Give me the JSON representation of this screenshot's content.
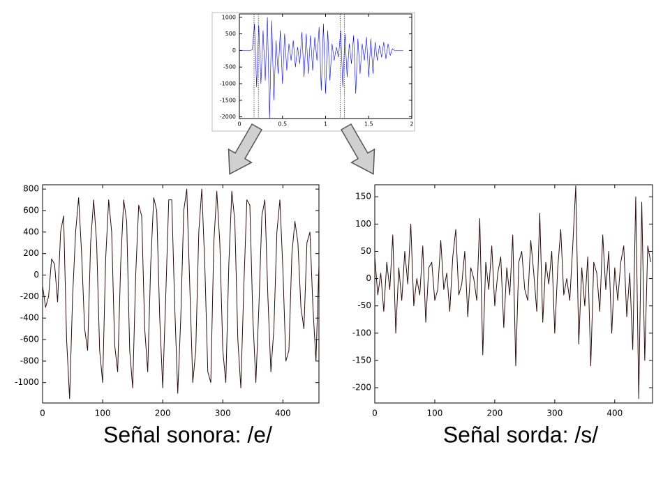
{
  "chart_data": [
    {
      "type": "line",
      "color": "#0000ff",
      "x": [
        0,
        0.025,
        0.05,
        0.075,
        0.1,
        0.125,
        0.15,
        0.175,
        0.2,
        0.225,
        0.25,
        0.275,
        0.3,
        0.325,
        0.35,
        0.375,
        0.4,
        0.425,
        0.45,
        0.475,
        0.5,
        0.525,
        0.55,
        0.575,
        0.6,
        0.625,
        0.65,
        0.675,
        0.7,
        0.725,
        0.75,
        0.775,
        0.8,
        0.825,
        0.85,
        0.875,
        0.9,
        0.925,
        0.95,
        0.975,
        1.0,
        1.025,
        1.05,
        1.075,
        1.1,
        1.125,
        1.15,
        1.175,
        1.2,
        1.225,
        1.25,
        1.275,
        1.3,
        1.325,
        1.35,
        1.375,
        1.4,
        1.425,
        1.45,
        1.475,
        1.5,
        1.525,
        1.55,
        1.575,
        1.6,
        1.625,
        1.65,
        1.675,
        1.7,
        1.725,
        1.75,
        1.775,
        1.8,
        1.825,
        1.85,
        1.875,
        1.9
      ],
      "values": [
        0,
        0,
        0,
        0,
        0,
        0,
        20,
        800,
        -1100,
        750,
        -1000,
        600,
        -900,
        1000,
        -2050,
        900,
        -1500,
        300,
        -700,
        600,
        -1000,
        500,
        -600,
        200,
        -300,
        300,
        -500,
        100,
        -400,
        550,
        -800,
        500,
        -700,
        450,
        -600,
        400,
        -300,
        700,
        -1200,
        800,
        -1300,
        600,
        -900,
        200,
        -300,
        100,
        -200,
        600,
        -1100,
        500,
        -800,
        200,
        -400,
        450,
        -1300,
        350,
        -700,
        200,
        -300,
        400,
        -800,
        350,
        -700,
        250,
        -300,
        150,
        -200,
        250,
        -250,
        200,
        -150,
        50,
        0,
        0,
        0,
        0,
        0
      ],
      "selections": [
        0.17,
        0.22,
        1.17,
        1.22
      ],
      "xlim": [
        0,
        2
      ],
      "ylim": [
        -2050,
        1100
      ],
      "xticks": [
        0,
        0.5,
        1,
        1.5,
        2
      ],
      "yticks": [
        1000,
        500,
        0,
        -500,
        -1000,
        -1500,
        -2000
      ]
    },
    {
      "type": "line",
      "color": "#2a0a0a",
      "title": "Señal sonora: /e/",
      "x": [
        0,
        5,
        10,
        15,
        20,
        25,
        30,
        35,
        40,
        45,
        50,
        55,
        60,
        65,
        70,
        75,
        80,
        85,
        90,
        95,
        100,
        105,
        110,
        115,
        120,
        125,
        130,
        135,
        140,
        145,
        150,
        155,
        160,
        165,
        170,
        175,
        180,
        185,
        190,
        195,
        200,
        205,
        210,
        215,
        220,
        225,
        230,
        235,
        240,
        245,
        250,
        255,
        260,
        265,
        270,
        275,
        280,
        285,
        290,
        295,
        300,
        305,
        310,
        315,
        320,
        325,
        330,
        335,
        340,
        345,
        350,
        355,
        360,
        365,
        370,
        375,
        380,
        385,
        390,
        395,
        400,
        405,
        410,
        415,
        420,
        425,
        430,
        435,
        440,
        445,
        450,
        455,
        460
      ],
      "values": [
        -100,
        -300,
        -200,
        150,
        100,
        -250,
        400,
        550,
        -600,
        -1150,
        -200,
        400,
        720,
        200,
        -500,
        -700,
        300,
        700,
        300,
        -700,
        -1000,
        150,
        700,
        400,
        -650,
        -900,
        100,
        700,
        500,
        -700,
        -1050,
        0,
        650,
        550,
        -500,
        -900,
        100,
        720,
        600,
        -400,
        -1050,
        -200,
        700,
        700,
        -300,
        -1100,
        -400,
        600,
        800,
        -100,
        -1000,
        -700,
        400,
        800,
        100,
        -900,
        -1000,
        300,
        780,
        300,
        -700,
        -1000,
        100,
        780,
        500,
        -600,
        -1050,
        -100,
        700,
        650,
        -400,
        -1000,
        -300,
        550,
        700,
        -200,
        -900,
        -500,
        400,
        700,
        50,
        -800,
        -700,
        200,
        500,
        300,
        -300,
        -500,
        300,
        400,
        -300,
        -800,
        100
      ],
      "xlim": [
        0,
        460
      ],
      "ylim": [
        -1190,
        840
      ],
      "xticks": [
        0,
        100,
        200,
        300,
        400
      ],
      "yticks": [
        800,
        600,
        400,
        200,
        0,
        -200,
        -400,
        -600,
        -800,
        -1000
      ]
    },
    {
      "type": "line",
      "color": "#2a0a0a",
      "title": "Señal sorda: /s/",
      "x": [
        0,
        5,
        10,
        15,
        20,
        25,
        30,
        35,
        40,
        45,
        50,
        55,
        60,
        65,
        70,
        75,
        80,
        85,
        90,
        95,
        100,
        105,
        110,
        115,
        120,
        125,
        130,
        135,
        140,
        145,
        150,
        155,
        160,
        165,
        170,
        175,
        180,
        185,
        190,
        195,
        200,
        205,
        210,
        215,
        220,
        225,
        230,
        235,
        240,
        245,
        250,
        255,
        260,
        265,
        270,
        275,
        280,
        285,
        290,
        295,
        300,
        305,
        310,
        315,
        320,
        325,
        330,
        335,
        340,
        345,
        350,
        355,
        360,
        365,
        370,
        375,
        380,
        385,
        390,
        395,
        400,
        405,
        410,
        415,
        420,
        425,
        430,
        435,
        440,
        445,
        450,
        455,
        460
      ],
      "values": [
        40,
        -30,
        10,
        -60,
        30,
        -20,
        80,
        -100,
        20,
        -40,
        50,
        -10,
        100,
        -50,
        0,
        -30,
        60,
        -80,
        20,
        30,
        -40,
        -20,
        70,
        -20,
        10,
        -60,
        40,
        90,
        -30,
        -10,
        50,
        -70,
        20,
        0,
        -40,
        110,
        -140,
        30,
        -20,
        60,
        -50,
        10,
        40,
        -90,
        20,
        -30,
        80,
        -160,
        30,
        50,
        -20,
        -40,
        70,
        10,
        -60,
        120,
        -80,
        30,
        -10,
        50,
        -100,
        20,
        90,
        -30,
        0,
        -40,
        60,
        170,
        -120,
        20,
        -50,
        40,
        -160,
        30,
        10,
        -60,
        80,
        -20,
        50,
        -100,
        20,
        -40,
        30,
        60,
        -70,
        10,
        -130,
        150,
        -220,
        140,
        -150,
        60,
        30
      ],
      "xlim": [
        0,
        463
      ],
      "ylim": [
        -228,
        172
      ],
      "xticks": [
        0,
        100,
        200,
        300,
        400
      ],
      "yticks": [
        150,
        100,
        50,
        0,
        -50,
        -100,
        -150,
        -200
      ]
    }
  ]
}
